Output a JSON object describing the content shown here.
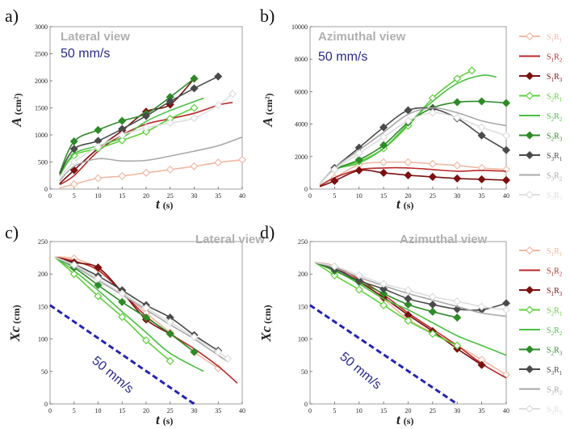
{
  "figure": {
    "colors": {
      "S1R1": "#f0b9a4",
      "S1R2": "#b82a2a",
      "S1R3": "#7a1010",
      "S2R1": "#5ed03b",
      "S2R2": "#4bbf43",
      "S2R3": "#2f8a28",
      "S3R1": "#4a4a4a",
      "S3R2": "#a8a8a8",
      "S3R3": "#dedede",
      "view_label": "#b0b0b0",
      "speed_label": "#2a2a8a",
      "speed_line": "#2323b4"
    }
  },
  "legend": {
    "entries": [
      {
        "key": "S1R1",
        "label": "S1R1",
        "style": "line-open-diamond"
      },
      {
        "key": "S1R2",
        "label": "S1R2",
        "style": "line"
      },
      {
        "key": "S1R3",
        "label": "S1R3",
        "style": "line-filled-diamond"
      },
      {
        "key": "S2R1",
        "label": "S2R1",
        "style": "line-open-diamond"
      },
      {
        "key": "S2R2",
        "label": "S2R2",
        "style": "line"
      },
      {
        "key": "S2R3",
        "label": "S2R3",
        "style": "line-filled-diamond"
      },
      {
        "key": "S3R1",
        "label": "S3R1",
        "style": "line-filled-diamond"
      },
      {
        "key": "S3R2",
        "label": "S3R2",
        "style": "line"
      },
      {
        "key": "S3R3",
        "label": "S3R3",
        "style": "line-open-diamond"
      }
    ]
  },
  "chart_data": [
    {
      "panel": "a)",
      "type": "line",
      "view_label": "Lateral view",
      "speed_label": "50 mm/s",
      "xlabel": "t",
      "xunit": "(s)",
      "ylabel": "A",
      "yunit": "(cm²)",
      "xlim": [
        0,
        40
      ],
      "ylim": [
        0,
        3000
      ],
      "xticks": [
        0,
        5,
        10,
        15,
        20,
        25,
        30,
        35,
        40
      ],
      "yticks": [
        0,
        500,
        1000,
        1500,
        2000,
        2500,
        3000
      ],
      "series": [
        {
          "key": "S1R1",
          "x": [
            2,
            5,
            10,
            15,
            20,
            25,
            30,
            35,
            40
          ],
          "y": [
            20,
            90,
            200,
            240,
            300,
            360,
            420,
            490,
            540
          ],
          "marker": "open"
        },
        {
          "key": "S1R2",
          "x": [
            2,
            5,
            10,
            15,
            20,
            25,
            30,
            35,
            38
          ],
          "y": [
            80,
            250,
            700,
            1000,
            1200,
            1300,
            1400,
            1550,
            1600
          ],
          "marker": "none"
        },
        {
          "key": "S1R3",
          "x": [
            2,
            5,
            10,
            15,
            20,
            25,
            30
          ],
          "y": [
            100,
            350,
            750,
            1080,
            1430,
            1560,
            2040
          ],
          "marker": "filled"
        },
        {
          "key": "S2R1",
          "x": [
            2,
            5,
            10,
            15,
            20,
            25,
            30
          ],
          "y": [
            250,
            620,
            750,
            900,
            1060,
            1300,
            1500
          ],
          "marker": "open"
        },
        {
          "key": "S2R2",
          "x": [
            2,
            5,
            10,
            15,
            20,
            25,
            32
          ],
          "y": [
            260,
            650,
            800,
            950,
            1250,
            1450,
            1680
          ],
          "marker": "none"
        },
        {
          "key": "S2R3",
          "x": [
            2,
            5,
            10,
            15,
            20,
            25,
            30
          ],
          "y": [
            300,
            880,
            1090,
            1260,
            1390,
            1700,
            2040
          ],
          "marker": "filled"
        },
        {
          "key": "S3R1",
          "x": [
            2,
            5,
            10,
            15,
            20,
            25,
            30,
            35
          ],
          "y": [
            280,
            740,
            890,
            1110,
            1350,
            1620,
            1860,
            2080
          ],
          "marker": "filled"
        },
        {
          "key": "S3R2",
          "x": [
            2,
            5,
            10,
            15,
            20,
            25,
            30,
            35,
            40
          ],
          "y": [
            150,
            420,
            560,
            520,
            530,
            610,
            700,
            800,
            960
          ],
          "marker": "none"
        },
        {
          "key": "S3R3",
          "x": [
            2,
            5,
            10,
            15,
            20,
            25,
            30,
            35,
            38
          ],
          "y": [
            200,
            500,
            780,
            1000,
            1130,
            1220,
            1310,
            1550,
            1760
          ],
          "marker": "open"
        }
      ]
    },
    {
      "panel": "b)",
      "type": "line",
      "view_label": "Azimuthal view",
      "speed_label": "50 mm/s",
      "xlabel": "t",
      "xunit": "(s)",
      "ylabel": "A",
      "yunit": "(cm²)",
      "xlim": [
        0,
        40
      ],
      "ylim": [
        0,
        10000
      ],
      "xticks": [
        0,
        5,
        10,
        15,
        20,
        25,
        30,
        35,
        40
      ],
      "yticks": [
        0,
        2000,
        4000,
        6000,
        8000,
        10000
      ],
      "series": [
        {
          "key": "S1R1",
          "x": [
            2,
            5,
            10,
            15,
            20,
            25,
            30,
            35,
            40
          ],
          "y": [
            200,
            700,
            1500,
            1650,
            1650,
            1550,
            1450,
            1300,
            1200
          ],
          "marker": "open"
        },
        {
          "key": "S1R2",
          "x": [
            2,
            5,
            10,
            15,
            20,
            25,
            30,
            35,
            40
          ],
          "y": [
            200,
            700,
            1200,
            1300,
            1300,
            1200,
            1100,
            1150,
            1100
          ],
          "marker": "none"
        },
        {
          "key": "S1R3",
          "x": [
            2,
            5,
            10,
            15,
            20,
            25,
            30,
            35,
            40
          ],
          "y": [
            150,
            500,
            1150,
            1000,
            850,
            750,
            650,
            600,
            550
          ],
          "marker": "filled"
        },
        {
          "key": "S2R1",
          "x": [
            2,
            5,
            10,
            15,
            20,
            25,
            30,
            33
          ],
          "y": [
            300,
            1200,
            1700,
            2500,
            3900,
            5600,
            6800,
            7300
          ],
          "marker": "open"
        },
        {
          "key": "S2R2",
          "x": [
            2,
            5,
            10,
            15,
            20,
            25,
            30,
            35,
            38
          ],
          "y": [
            300,
            1200,
            1600,
            2500,
            4000,
            5400,
            6500,
            7000,
            6900
          ],
          "marker": "none"
        },
        {
          "key": "S2R3",
          "x": [
            2,
            5,
            10,
            15,
            20,
            25,
            30,
            35,
            40
          ],
          "y": [
            300,
            1200,
            1800,
            2700,
            4100,
            5000,
            5350,
            5400,
            5300
          ],
          "marker": "filled"
        },
        {
          "key": "S3R1",
          "x": [
            2,
            5,
            10,
            15,
            20,
            25,
            30,
            35,
            40
          ],
          "y": [
            300,
            1300,
            2550,
            3800,
            4850,
            4950,
            4350,
            3300,
            2400
          ],
          "marker": "filled"
        },
        {
          "key": "S3R2",
          "x": [
            2,
            5,
            10,
            15,
            20,
            25,
            30,
            35,
            40
          ],
          "y": [
            300,
            1300,
            2400,
            3500,
            4600,
            5000,
            4700,
            4200,
            3900
          ],
          "marker": "none"
        },
        {
          "key": "S3R3",
          "x": [
            2,
            5,
            10,
            15,
            20,
            25,
            30,
            35,
            40
          ],
          "y": [
            300,
            1200,
            2200,
            3200,
            4200,
            4700,
            4400,
            3800,
            3300
          ],
          "marker": "open"
        }
      ]
    },
    {
      "panel": "c)",
      "type": "line",
      "view_label": "Lateral view",
      "speed_label": "50 mm/s",
      "xlabel": "t",
      "xunit": "(s)",
      "ylabel": "Xc",
      "yunit": "(cm)",
      "xlim": [
        0,
        40
      ],
      "ylim": [
        0,
        250
      ],
      "xticks": [
        0,
        5,
        10,
        15,
        20,
        25,
        30,
        35,
        40
      ],
      "yticks": [
        0,
        50,
        100,
        150,
        200,
        250
      ],
      "speed_line": {
        "x": [
          0,
          30
        ],
        "y": [
          152,
          0
        ]
      },
      "series": [
        {
          "key": "S1R1",
          "x": [
            1,
            5,
            10,
            15,
            20,
            25,
            30,
            35
          ],
          "y": [
            226,
            224,
            208,
            173,
            140,
            110,
            80,
            55
          ],
          "marker": "open"
        },
        {
          "key": "S1R2",
          "x": [
            1,
            5,
            10,
            15,
            20,
            25,
            30,
            35,
            39
          ],
          "y": [
            226,
            220,
            206,
            172,
            135,
            108,
            85,
            58,
            32
          ],
          "marker": "none"
        },
        {
          "key": "S1R3",
          "x": [
            1,
            5,
            10,
            15,
            20,
            25
          ],
          "y": [
            226,
            218,
            210,
            172,
            130,
            108
          ],
          "marker": "filled"
        },
        {
          "key": "S2R1",
          "x": [
            1,
            5,
            10,
            15,
            20,
            25
          ],
          "y": [
            226,
            200,
            166,
            134,
            98,
            66
          ],
          "marker": "open"
        },
        {
          "key": "S2R2",
          "x": [
            1,
            5,
            10,
            15,
            20,
            25,
            32
          ],
          "y": [
            226,
            205,
            175,
            142,
            110,
            78,
            50
          ],
          "marker": "none"
        },
        {
          "key": "S2R3",
          "x": [
            1,
            5,
            10,
            15,
            20,
            25,
            30
          ],
          "y": [
            226,
            210,
            183,
            157,
            133,
            108,
            80
          ],
          "marker": "filled"
        },
        {
          "key": "S3R1",
          "x": [
            1,
            5,
            10,
            15,
            20,
            25,
            30,
            35
          ],
          "y": [
            226,
            215,
            197,
            175,
            152,
            133,
            106,
            82
          ],
          "marker": "filled"
        },
        {
          "key": "S3R2",
          "x": [
            1,
            5,
            10,
            15,
            20,
            25,
            30,
            35,
            37
          ],
          "y": [
            226,
            212,
            190,
            168,
            145,
            122,
            100,
            75,
            65
          ],
          "marker": "none"
        },
        {
          "key": "S3R3",
          "x": [
            1,
            5,
            10,
            15,
            20,
            25,
            30,
            35,
            37
          ],
          "y": [
            226,
            214,
            193,
            170,
            148,
            126,
            103,
            80,
            70
          ],
          "marker": "open"
        }
      ]
    },
    {
      "panel": "d)",
      "type": "line",
      "view_label": "Azimuthal view",
      "speed_label": "50 mm/s",
      "xlabel": "t",
      "xunit": "(s)",
      "ylabel": "Xc",
      "yunit": "(cm)",
      "xlim": [
        0,
        40
      ],
      "ylim": [
        0,
        250
      ],
      "xticks": [
        0,
        5,
        10,
        15,
        20,
        25,
        30,
        35,
        40
      ],
      "yticks": [
        0,
        50,
        100,
        150,
        200,
        250
      ],
      "speed_line": {
        "x": [
          0,
          30
        ],
        "y": [
          152,
          0
        ]
      },
      "series": [
        {
          "key": "S1R1",
          "x": [
            1,
            5,
            10,
            15,
            20,
            25,
            30,
            35,
            40
          ],
          "y": [
            218,
            210,
            190,
            162,
            130,
            110,
            90,
            68,
            45
          ],
          "marker": "open"
        },
        {
          "key": "S1R2",
          "x": [
            1,
            5,
            10,
            15,
            20,
            25,
            30,
            35,
            40
          ],
          "y": [
            218,
            212,
            192,
            168,
            140,
            115,
            90,
            62,
            40
          ],
          "marker": "none"
        },
        {
          "key": "S1R3",
          "x": [
            1,
            5,
            10,
            15,
            20,
            25,
            30,
            35
          ],
          "y": [
            218,
            210,
            188,
            164,
            137,
            112,
            85,
            60
          ],
          "marker": "filled"
        },
        {
          "key": "S2R1",
          "x": [
            1,
            5,
            10,
            15,
            20,
            25,
            30
          ],
          "y": [
            218,
            198,
            176,
            152,
            128,
            108,
            90
          ],
          "marker": "open"
        },
        {
          "key": "S2R2",
          "x": [
            1,
            5,
            10,
            15,
            20,
            25,
            30,
            35,
            40
          ],
          "y": [
            218,
            206,
            185,
            162,
            145,
            125,
            105,
            90,
            75
          ],
          "marker": "none"
        },
        {
          "key": "S2R3",
          "x": [
            1,
            5,
            10,
            15,
            20,
            25,
            30
          ],
          "y": [
            218,
            205,
            188,
            170,
            153,
            142,
            133
          ],
          "marker": "filled"
        },
        {
          "key": "S3R1",
          "x": [
            1,
            5,
            10,
            15,
            20,
            25,
            30,
            35,
            40
          ],
          "y": [
            218,
            208,
            190,
            177,
            162,
            153,
            146,
            145,
            155
          ],
          "marker": "filled"
        },
        {
          "key": "S3R2",
          "x": [
            1,
            5,
            10,
            15,
            20,
            25,
            30,
            35,
            40
          ],
          "y": [
            218,
            210,
            195,
            182,
            170,
            160,
            150,
            140,
            135
          ],
          "marker": "none"
        },
        {
          "key": "S3R3",
          "x": [
            1,
            5,
            10,
            15,
            20,
            25,
            30,
            35,
            40
          ],
          "y": [
            218,
            212,
            198,
            185,
            175,
            165,
            158,
            150,
            145
          ],
          "marker": "open"
        }
      ]
    }
  ]
}
